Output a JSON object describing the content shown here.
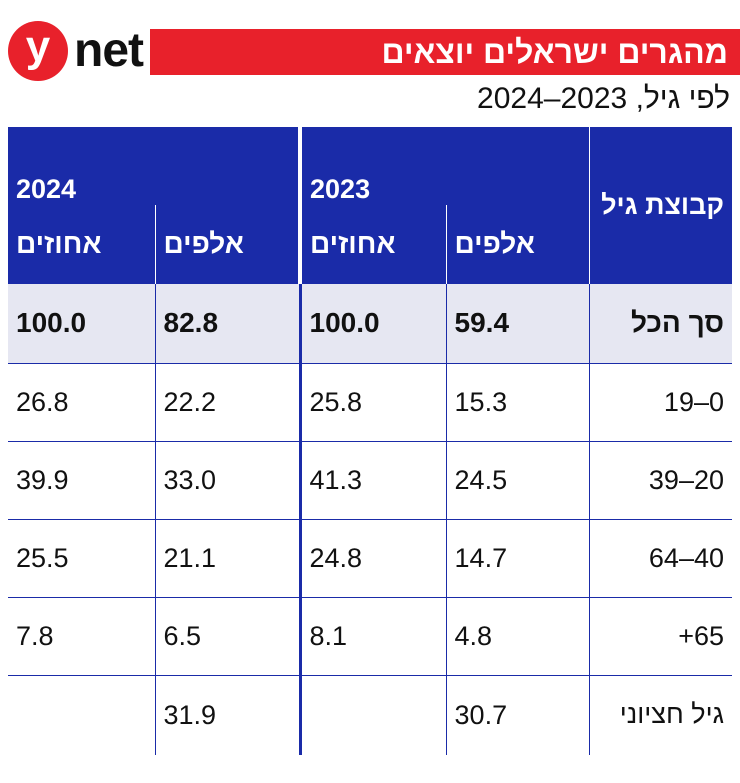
{
  "brand": {
    "logo_y": "y",
    "logo_net": "net"
  },
  "title": "מהגרים ישראלים יוצאים",
  "subtitle": "לפי גיל, 2023–2024",
  "table": {
    "age_group_header": "קבוצת גיל",
    "years": [
      "2023",
      "2024"
    ],
    "sub_headers": {
      "thousands": "אלפים",
      "percent": "אחוזים"
    },
    "total_row": {
      "label": "סך הכל",
      "t2023": "59.4",
      "p2023": "100.0",
      "t2024": "82.8",
      "p2024": "100.0"
    },
    "rows": [
      {
        "label": "0–19",
        "t2023": "15.3",
        "p2023": "25.8",
        "t2024": "22.2",
        "p2024": "26.8"
      },
      {
        "label": "20–39",
        "t2023": "24.5",
        "p2023": "41.3",
        "t2024": "33.0",
        "p2024": "39.9"
      },
      {
        "label": "40–64",
        "t2023": "14.7",
        "p2023": "24.8",
        "t2024": "21.1",
        "p2024": "25.5"
      },
      {
        "label": "65+",
        "t2023": "4.8",
        "p2023": "8.1",
        "t2024": "6.5",
        "p2024": "7.8"
      },
      {
        "label": "גיל חציוני",
        "t2023": "30.7",
        "p2023": "",
        "t2024": "31.9",
        "p2024": ""
      }
    ]
  },
  "colors": {
    "brand_red": "#e8212b",
    "header_blue": "#1a2ba8",
    "total_bg": "#e6e7f2"
  }
}
